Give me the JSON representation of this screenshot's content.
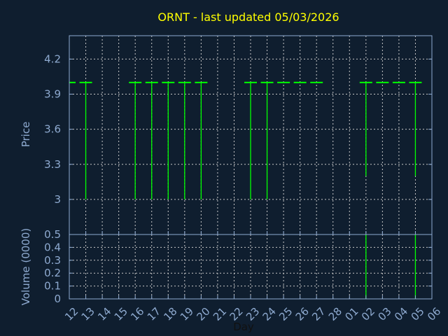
{
  "chart_data": {
    "type": "ohlc",
    "title": "ORNT - last updated 05/03/2026",
    "xlabel": "Day",
    "price_panel": {
      "ylabel": "Price",
      "ylim": [
        2.7,
        4.4
      ],
      "yticks": [
        "4.2",
        "3.9",
        "3.6",
        "3.3",
        "3"
      ],
      "ytick_values": [
        4.2,
        3.9,
        3.6,
        3.3,
        3.0
      ]
    },
    "volume_panel": {
      "ylabel": "Volume (0000)",
      "ylim": [
        0,
        0.5
      ],
      "yticks": [
        "0.5",
        "0.4",
        "0.3",
        "0.2",
        "0.1",
        "0"
      ],
      "ytick_values": [
        0.5,
        0.4,
        0.3,
        0.2,
        0.1,
        0
      ]
    },
    "xticks": [
      "12",
      "13",
      "14",
      "15",
      "16",
      "17",
      "18",
      "19",
      "20",
      "21",
      "22",
      "23",
      "24",
      "25",
      "26",
      "27",
      "28",
      "01",
      "02",
      "03",
      "04",
      "05",
      "06"
    ],
    "grid": true,
    "colors": {
      "background": "#0f1e2f",
      "bars": "#00ff00",
      "title": "#ffff00",
      "axis": "#8eaad0",
      "grid": "#c8c8c8"
    },
    "bars": [
      {
        "day": "12",
        "open": 4.0,
        "high": 4.0,
        "low": 4.0,
        "close": 4.0,
        "volume": 0
      },
      {
        "day": "13",
        "open": 4.0,
        "high": 4.0,
        "low": 3.0,
        "close": 4.0,
        "volume": 0
      },
      {
        "day": "16",
        "open": 4.0,
        "high": 4.0,
        "low": 3.0,
        "close": 4.0,
        "volume": 0
      },
      {
        "day": "17",
        "open": 4.0,
        "high": 4.0,
        "low": 3.0,
        "close": 4.0,
        "volume": 0
      },
      {
        "day": "18",
        "open": 4.0,
        "high": 4.0,
        "low": 3.0,
        "close": 4.0,
        "volume": 0
      },
      {
        "day": "19",
        "open": 4.0,
        "high": 4.0,
        "low": 3.0,
        "close": 4.0,
        "volume": 0
      },
      {
        "day": "20",
        "open": 4.0,
        "high": 4.0,
        "low": 3.0,
        "close": 4.0,
        "volume": 0
      },
      {
        "day": "23",
        "open": 4.0,
        "high": 4.0,
        "low": 3.0,
        "close": 4.0,
        "volume": 0
      },
      {
        "day": "24",
        "open": 4.0,
        "high": 4.0,
        "low": 3.0,
        "close": 4.0,
        "volume": 0
      },
      {
        "day": "25",
        "open": 4.0,
        "high": 4.0,
        "low": 4.0,
        "close": 4.0,
        "volume": 0
      },
      {
        "day": "26",
        "open": 4.0,
        "high": 4.0,
        "low": 4.0,
        "close": 4.0,
        "volume": 0
      },
      {
        "day": "27",
        "open": 4.0,
        "high": 4.0,
        "low": 4.0,
        "close": 4.0,
        "volume": 0
      },
      {
        "day": "02",
        "open": 4.0,
        "high": 4.0,
        "low": 3.2,
        "close": 4.0,
        "volume": 0.5
      },
      {
        "day": "03",
        "open": 4.0,
        "high": 4.0,
        "low": 4.0,
        "close": 4.0,
        "volume": 0
      },
      {
        "day": "04",
        "open": 4.0,
        "high": 4.0,
        "low": 4.0,
        "close": 4.0,
        "volume": 0
      },
      {
        "day": "05",
        "open": 4.0,
        "high": 4.0,
        "low": 3.2,
        "close": 4.0,
        "volume": 0.5
      }
    ]
  }
}
